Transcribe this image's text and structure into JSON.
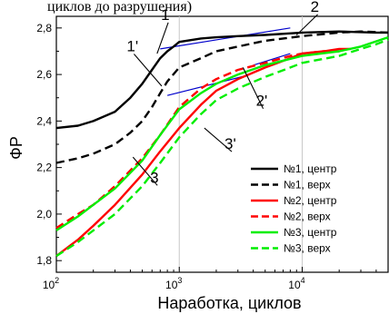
{
  "chart_data": {
    "type": "line",
    "caption_fragment": "циклов до разрушения)",
    "xlabel": "Наработка, циклов",
    "ylabel": "ФР",
    "x_scale": "log",
    "xlim": [
      100,
      50000
    ],
    "ylim": [
      1.75,
      2.85
    ],
    "x_ticks": [
      {
        "value": 100,
        "base": "10",
        "exp": "2"
      },
      {
        "value": 1000,
        "base": "10",
        "exp": "3"
      },
      {
        "value": 10000,
        "base": "10",
        "exp": "4"
      }
    ],
    "y_ticks": [
      "1,8",
      "2,0",
      "2,2",
      "2,4",
      "2,6",
      "2,8"
    ],
    "y_tick_values": [
      1.8,
      2.0,
      2.2,
      2.4,
      2.6,
      2.8
    ],
    "grid": {
      "vertical_at": [
        1000,
        10000
      ]
    },
    "legend_position": "right",
    "series": [
      {
        "name": "№1, центр",
        "color": "#000000",
        "style": "solid",
        "points": [
          [
            100,
            2.37
          ],
          [
            150,
            2.38
          ],
          [
            200,
            2.4
          ],
          [
            300,
            2.44
          ],
          [
            400,
            2.5
          ],
          [
            500,
            2.56
          ],
          [
            600,
            2.62
          ],
          [
            700,
            2.67
          ],
          [
            800,
            2.7
          ],
          [
            900,
            2.72
          ],
          [
            1000,
            2.74
          ],
          [
            1500,
            2.755
          ],
          [
            2000,
            2.76
          ],
          [
            3000,
            2.765
          ],
          [
            5000,
            2.77
          ],
          [
            10000,
            2.78
          ],
          [
            20000,
            2.785
          ],
          [
            40000,
            2.78
          ],
          [
            50000,
            2.78
          ]
        ]
      },
      {
        "name": "№1, верх",
        "color": "#000000",
        "style": "dashed",
        "points": [
          [
            100,
            2.22
          ],
          [
            150,
            2.24
          ],
          [
            200,
            2.26
          ],
          [
            300,
            2.3
          ],
          [
            400,
            2.35
          ],
          [
            500,
            2.4
          ],
          [
            600,
            2.46
          ],
          [
            700,
            2.52
          ],
          [
            800,
            2.57
          ],
          [
            1000,
            2.63
          ],
          [
            1500,
            2.67
          ],
          [
            2000,
            2.7
          ],
          [
            3000,
            2.72
          ],
          [
            5000,
            2.745
          ],
          [
            10000,
            2.765
          ],
          [
            20000,
            2.78
          ],
          [
            30000,
            2.785
          ],
          [
            50000,
            2.78
          ]
        ]
      },
      {
        "name": "№2, центр",
        "color": "#ff0000",
        "style": "solid",
        "points": [
          [
            100,
            1.82
          ],
          [
            150,
            1.89
          ],
          [
            200,
            1.95
          ],
          [
            300,
            2.04
          ],
          [
            500,
            2.17
          ],
          [
            700,
            2.27
          ],
          [
            1000,
            2.37
          ],
          [
            1500,
            2.47
          ],
          [
            2000,
            2.53
          ],
          [
            3000,
            2.58
          ],
          [
            5000,
            2.63
          ],
          [
            8000,
            2.67
          ],
          [
            10000,
            2.69
          ],
          [
            15000,
            2.7
          ],
          [
            20000,
            2.71
          ],
          [
            25000,
            2.71
          ]
        ]
      },
      {
        "name": "№2, верх",
        "color": "#ff0000",
        "style": "dashed",
        "points": [
          [
            100,
            1.94
          ],
          [
            150,
            2.0
          ],
          [
            200,
            2.04
          ],
          [
            300,
            2.12
          ],
          [
            500,
            2.24
          ],
          [
            700,
            2.34
          ],
          [
            1000,
            2.46
          ],
          [
            1500,
            2.54
          ],
          [
            2000,
            2.58
          ],
          [
            3000,
            2.62
          ],
          [
            5000,
            2.65
          ],
          [
            8000,
            2.68
          ],
          [
            10000,
            2.69
          ],
          [
            15000,
            2.7
          ],
          [
            20000,
            2.7
          ]
        ]
      },
      {
        "name": "№3, центр",
        "color": "#00ee00",
        "style": "solid",
        "points": [
          [
            100,
            1.93
          ],
          [
            150,
            1.99
          ],
          [
            200,
            2.04
          ],
          [
            300,
            2.11
          ],
          [
            500,
            2.23
          ],
          [
            700,
            2.34
          ],
          [
            1000,
            2.45
          ],
          [
            1500,
            2.52
          ],
          [
            2000,
            2.56
          ],
          [
            3000,
            2.6
          ],
          [
            5000,
            2.64
          ],
          [
            10000,
            2.68
          ],
          [
            20000,
            2.7
          ],
          [
            30000,
            2.72
          ],
          [
            50000,
            2.76
          ]
        ]
      },
      {
        "name": "№3, верх",
        "color": "#00ee00",
        "style": "dashed",
        "points": [
          [
            100,
            1.82
          ],
          [
            150,
            1.88
          ],
          [
            200,
            1.93
          ],
          [
            300,
            2.0
          ],
          [
            500,
            2.12
          ],
          [
            700,
            2.22
          ],
          [
            1000,
            2.33
          ],
          [
            1500,
            2.43
          ],
          [
            2000,
            2.49
          ],
          [
            3000,
            2.54
          ],
          [
            5000,
            2.59
          ],
          [
            8000,
            2.63
          ],
          [
            10000,
            2.65
          ],
          [
            20000,
            2.68
          ],
          [
            30000,
            2.71
          ],
          [
            40000,
            2.73
          ],
          [
            50000,
            2.75
          ]
        ]
      }
    ],
    "tangent_lines": [
      {
        "name": "tangent-1",
        "color": "#0000cc",
        "from": [
          700,
          2.71
        ],
        "to": [
          8000,
          2.8
        ]
      },
      {
        "name": "tangent-2",
        "color": "#0000cc",
        "from": [
          4000,
          2.64
        ],
        "to": [
          8000,
          2.69
        ]
      },
      {
        "name": "tangent-3",
        "color": "#0000cc",
        "from": [
          800,
          2.51
        ],
        "to": [
          3500,
          2.595
        ]
      }
    ],
    "annotations": [
      {
        "text": "1",
        "x": 760,
        "y": 2.835,
        "pointer_to": [
          660,
          2.69
        ]
      },
      {
        "text": "1'",
        "x": 400,
        "y": 2.7,
        "pointer_to": [
          720,
          2.55
        ]
      },
      {
        "text": "2",
        "x": 12500,
        "y": 2.87,
        "pointer_to": [
          9000,
          2.77
        ]
      },
      {
        "text": "2'",
        "x": 4500,
        "y": 2.465,
        "pointer_to": [
          3300,
          2.63
        ]
      },
      {
        "text": "3",
        "x": 620,
        "y": 2.135,
        "pointer_to": [
          420,
          2.245
        ]
      },
      {
        "text": "3'",
        "x": 2500,
        "y": 2.28,
        "pointer_to": [
          1600,
          2.37
        ]
      }
    ]
  }
}
